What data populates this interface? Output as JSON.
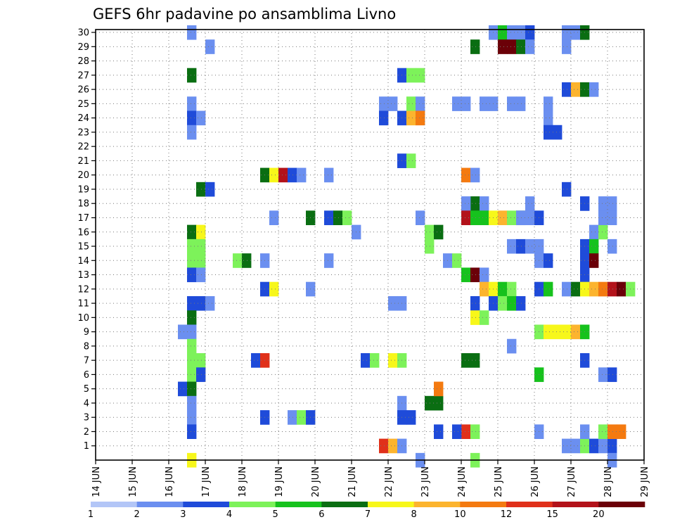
{
  "chart_data": {
    "type": "heatmap",
    "title": "GEFS 6hr padavine po ansamblima Livno",
    "x_tick_labels": [
      "14 JUN",
      "15 JUN",
      "16 JUN",
      "17 JUN",
      "18 JUN",
      "19 JUN",
      "20 JUN",
      "21 JUN",
      "22 JUN",
      "23 JUN",
      "24 JUN",
      "25 JUN",
      "26 JUN",
      "27 JUN",
      "28 JUN",
      "29 JUN"
    ],
    "y_tick_labels": [
      "1",
      "2",
      "3",
      "4",
      "5",
      "6",
      "7",
      "8",
      "9",
      "10",
      "11",
      "12",
      "13",
      "14",
      "15",
      "16",
      "17",
      "18",
      "19",
      "20",
      "21",
      "22",
      "23",
      "24",
      "25",
      "26",
      "27",
      "28",
      "29",
      "30"
    ],
    "x_unit": "6-hour steps from 14 JUN 00Z (4 steps per day)",
    "y_range": [
      0,
      30
    ],
    "grid": true,
    "colorbar": {
      "labels": [
        "1",
        "2",
        "3",
        "4",
        "5",
        "6",
        "7",
        "8",
        "10",
        "12",
        "15",
        "20"
      ],
      "colors": [
        "#b3c6f7",
        "#6b8ff0",
        "#1f4bd9",
        "#7df25a",
        "#16c21d",
        "#0a6e12",
        "#f7f71a",
        "#fcb42e",
        "#f47a10",
        "#e0301a",
        "#b3121a",
        "#6b0008"
      ]
    },
    "cells": [
      [
        10,
        30,
        1
      ],
      [
        12,
        29,
        1
      ],
      [
        10,
        27,
        5
      ],
      [
        10,
        25,
        1
      ],
      [
        10,
        24,
        2
      ],
      [
        11,
        24,
        1
      ],
      [
        10,
        23,
        1
      ],
      [
        10,
        16,
        5
      ],
      [
        11,
        16,
        6
      ],
      [
        10,
        15,
        3
      ],
      [
        11,
        15,
        3
      ],
      [
        10,
        14,
        3
      ],
      [
        11,
        14,
        3
      ],
      [
        10,
        13,
        2
      ],
      [
        11,
        13,
        1
      ],
      [
        10,
        11,
        2
      ],
      [
        11,
        11,
        2
      ],
      [
        12,
        11,
        1
      ],
      [
        10,
        10,
        5
      ],
      [
        9,
        9,
        1
      ],
      [
        10,
        9,
        1
      ],
      [
        10,
        8,
        3
      ],
      [
        10,
        7,
        3
      ],
      [
        11,
        7,
        3
      ],
      [
        10,
        6,
        3
      ],
      [
        11,
        6,
        2
      ],
      [
        9,
        5,
        2
      ],
      [
        10,
        5,
        5
      ],
      [
        10,
        4,
        1
      ],
      [
        10,
        3,
        1
      ],
      [
        10,
        2,
        2
      ],
      [
        10,
        0,
        6
      ],
      [
        11,
        19,
        5
      ],
      [
        12,
        19,
        2
      ],
      [
        15,
        14,
        3
      ],
      [
        16,
        14,
        5
      ],
      [
        18,
        14,
        1
      ],
      [
        18,
        12,
        2
      ],
      [
        19,
        12,
        6
      ],
      [
        17,
        7,
        2
      ],
      [
        18,
        7,
        9
      ],
      [
        18,
        20,
        5
      ],
      [
        19,
        20,
        6
      ],
      [
        20,
        20,
        10
      ],
      [
        21,
        20,
        2
      ],
      [
        22,
        20,
        1
      ],
      [
        25,
        20,
        1
      ],
      [
        19,
        17,
        1
      ],
      [
        23,
        17,
        5
      ],
      [
        25,
        14,
        1
      ],
      [
        23,
        12,
        1
      ],
      [
        18,
        3,
        2
      ],
      [
        21,
        3,
        1
      ],
      [
        22,
        3,
        3
      ],
      [
        23,
        3,
        2
      ],
      [
        25,
        17,
        2
      ],
      [
        26,
        17,
        5
      ],
      [
        27,
        17,
        3
      ],
      [
        28,
        16,
        1
      ],
      [
        29,
        7,
        2
      ],
      [
        30,
        7,
        3
      ],
      [
        33,
        27,
        2
      ],
      [
        34,
        27,
        3
      ],
      [
        35,
        27,
        3
      ],
      [
        31,
        25,
        1
      ],
      [
        32,
        25,
        1
      ],
      [
        34,
        25,
        3
      ],
      [
        35,
        25,
        1
      ],
      [
        31,
        24,
        2
      ],
      [
        33,
        24,
        2
      ],
      [
        34,
        24,
        7
      ],
      [
        35,
        24,
        8
      ],
      [
        33,
        21,
        2
      ],
      [
        34,
        21,
        3
      ],
      [
        35,
        17,
        1
      ],
      [
        36,
        16,
        3
      ],
      [
        37,
        16,
        5
      ],
      [
        36,
        15,
        3
      ],
      [
        38,
        14,
        1
      ],
      [
        39,
        14,
        3
      ],
      [
        32,
        11,
        1
      ],
      [
        33,
        11,
        1
      ],
      [
        32,
        7,
        6
      ],
      [
        33,
        7,
        3
      ],
      [
        31,
        1,
        9
      ],
      [
        32,
        1,
        7
      ],
      [
        33,
        1,
        1
      ],
      [
        33,
        4,
        1
      ],
      [
        33,
        3,
        2
      ],
      [
        34,
        3,
        2
      ],
      [
        35,
        0,
        1
      ],
      [
        36,
        4,
        5
      ],
      [
        37,
        4,
        5
      ],
      [
        37,
        5,
        8
      ],
      [
        37,
        2,
        2
      ],
      [
        41,
        29,
        5
      ],
      [
        39,
        25,
        1
      ],
      [
        40,
        25,
        1
      ],
      [
        42,
        25,
        1
      ],
      [
        43,
        25,
        1
      ],
      [
        40,
        20,
        8
      ],
      [
        41,
        20,
        1
      ],
      [
        41,
        18,
        5
      ],
      [
        40,
        18,
        1
      ],
      [
        42,
        18,
        1
      ],
      [
        40,
        17,
        10
      ],
      [
        41,
        17,
        4
      ],
      [
        42,
        17,
        4
      ],
      [
        43,
        17,
        6
      ],
      [
        44,
        17,
        7
      ],
      [
        45,
        17,
        3
      ],
      [
        46,
        17,
        5
      ],
      [
        40,
        13,
        4
      ],
      [
        41,
        13,
        11
      ],
      [
        42,
        13,
        1
      ],
      [
        42,
        12,
        7
      ],
      [
        43,
        12,
        6
      ],
      [
        44,
        12,
        4
      ],
      [
        45,
        12,
        3
      ],
      [
        41,
        11,
        2
      ],
      [
        43,
        11,
        2
      ],
      [
        44,
        11,
        3
      ],
      [
        45,
        11,
        4
      ],
      [
        46,
        11,
        2
      ],
      [
        41,
        10,
        6
      ],
      [
        42,
        10,
        3
      ],
      [
        40,
        7,
        5
      ],
      [
        41,
        7,
        5
      ],
      [
        40,
        2,
        9
      ],
      [
        41,
        2,
        3
      ],
      [
        39,
        2,
        2
      ],
      [
        41,
        0,
        3
      ],
      [
        43,
        30,
        1
      ],
      [
        44,
        30,
        4
      ],
      [
        45,
        30,
        1
      ],
      [
        46,
        30,
        1
      ],
      [
        47,
        30,
        2
      ],
      [
        44,
        29,
        11
      ],
      [
        45,
        29,
        11
      ],
      [
        46,
        29,
        5
      ],
      [
        47,
        29,
        1
      ],
      [
        45,
        25,
        1
      ],
      [
        46,
        25,
        1
      ],
      [
        46,
        17,
        1
      ],
      [
        47,
        17,
        1
      ],
      [
        48,
        17,
        2
      ],
      [
        47,
        18,
        1
      ],
      [
        45,
        15,
        1
      ],
      [
        46,
        15,
        2
      ],
      [
        47,
        15,
        1
      ],
      [
        48,
        15,
        1
      ],
      [
        48,
        14,
        1
      ],
      [
        49,
        14,
        2
      ],
      [
        48,
        12,
        2
      ],
      [
        49,
        12,
        4
      ],
      [
        45,
        8,
        1
      ],
      [
        48,
        9,
        3
      ],
      [
        49,
        9,
        6
      ],
      [
        50,
        9,
        6
      ],
      [
        51,
        9,
        6
      ],
      [
        52,
        9,
        7
      ],
      [
        53,
        9,
        4
      ],
      [
        48,
        6,
        4
      ],
      [
        48,
        2,
        1
      ],
      [
        49,
        24,
        1
      ],
      [
        49,
        23,
        2
      ],
      [
        50,
        23,
        2
      ],
      [
        49,
        25,
        1
      ],
      [
        51,
        30,
        1
      ],
      [
        52,
        30,
        1
      ],
      [
        53,
        30,
        5
      ],
      [
        51,
        29,
        1
      ],
      [
        51,
        26,
        2
      ],
      [
        52,
        26,
        7
      ],
      [
        53,
        26,
        5
      ],
      [
        54,
        26,
        1
      ],
      [
        51,
        19,
        2
      ],
      [
        53,
        18,
        2
      ],
      [
        54,
        16,
        1
      ],
      [
        55,
        16,
        3
      ],
      [
        55,
        18,
        1
      ],
      [
        56,
        18,
        1
      ],
      [
        55,
        17,
        1
      ],
      [
        56,
        17,
        1
      ],
      [
        53,
        15,
        2
      ],
      [
        54,
        15,
        4
      ],
      [
        56,
        15,
        1
      ],
      [
        53,
        14,
        2
      ],
      [
        54,
        14,
        11
      ],
      [
        53,
        13,
        2
      ],
      [
        51,
        12,
        1
      ],
      [
        52,
        12,
        5
      ],
      [
        53,
        12,
        6
      ],
      [
        54,
        12,
        7
      ],
      [
        55,
        12,
        8
      ],
      [
        56,
        12,
        10
      ],
      [
        57,
        12,
        11
      ],
      [
        58,
        12,
        3
      ],
      [
        53,
        7,
        2
      ],
      [
        55,
        6,
        1
      ],
      [
        56,
        6,
        2
      ],
      [
        51,
        1,
        1
      ],
      [
        52,
        1,
        1
      ],
      [
        53,
        1,
        3
      ],
      [
        54,
        1,
        2
      ],
      [
        55,
        1,
        1
      ],
      [
        56,
        1,
        2
      ],
      [
        53,
        2,
        1
      ],
      [
        55,
        2,
        3
      ],
      [
        56,
        2,
        8
      ],
      [
        57,
        2,
        8
      ],
      [
        56,
        0,
        1
      ]
    ]
  }
}
